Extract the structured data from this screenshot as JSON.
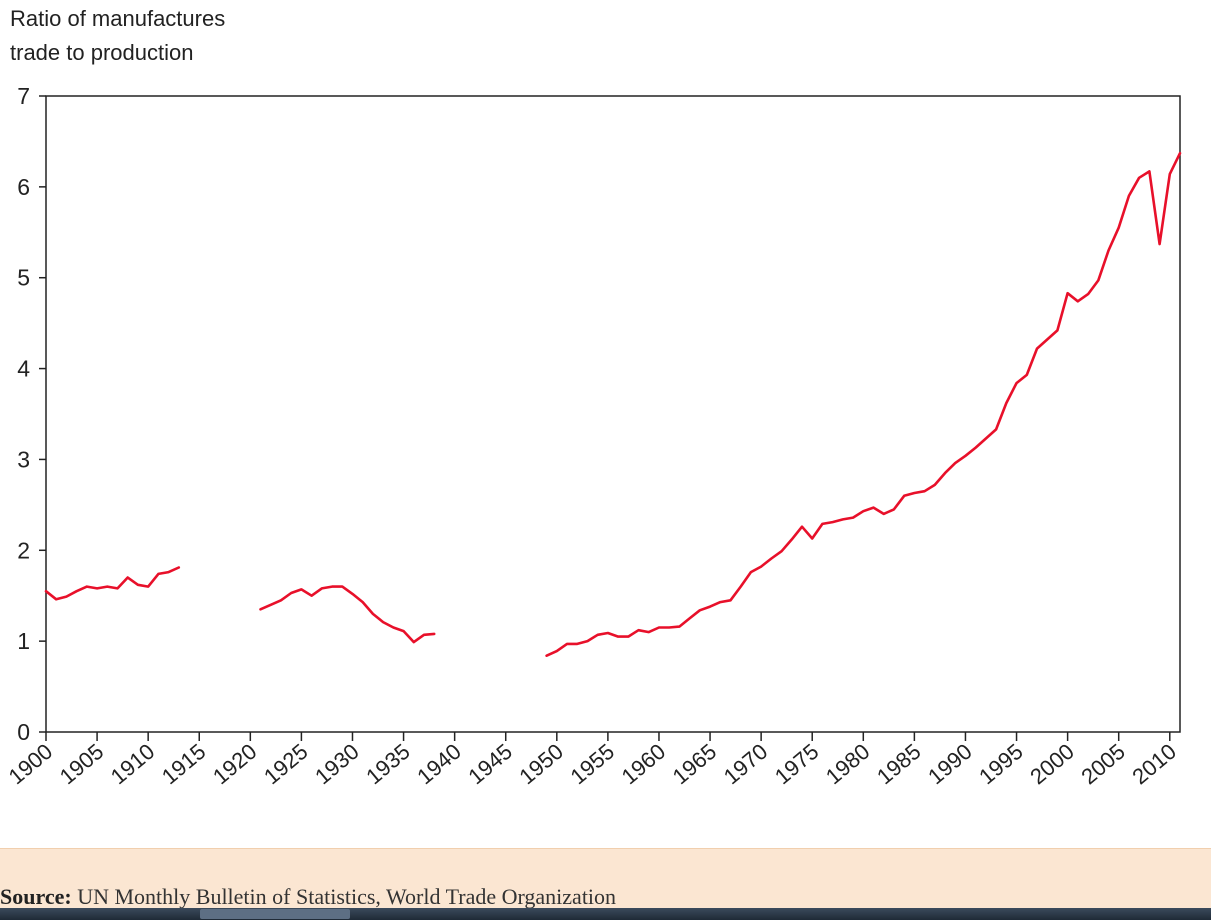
{
  "chart_data": {
    "type": "line",
    "ylabel_lines": [
      "Ratio of manufactures",
      "trade to production"
    ],
    "ylim": [
      0,
      7
    ],
    "yticks": [
      0,
      1,
      2,
      3,
      4,
      5,
      6,
      7
    ],
    "xlim": [
      1900,
      2011
    ],
    "xticks": [
      1900,
      1905,
      1910,
      1915,
      1920,
      1925,
      1930,
      1935,
      1940,
      1945,
      1950,
      1955,
      1960,
      1965,
      1970,
      1975,
      1980,
      1985,
      1990,
      1995,
      2000,
      2005,
      2010
    ],
    "grid": false,
    "series_color": "#e8102a",
    "segments": [
      {
        "x": [
          1900,
          1901,
          1902,
          1903,
          1904,
          1905,
          1906,
          1907,
          1908,
          1909,
          1910,
          1911,
          1912,
          1913
        ],
        "y": [
          1.55,
          1.46,
          1.49,
          1.55,
          1.6,
          1.58,
          1.6,
          1.58,
          1.7,
          1.62,
          1.6,
          1.74,
          1.76,
          1.81
        ]
      },
      {
        "x": [
          1921,
          1922,
          1923,
          1924,
          1925,
          1926,
          1927,
          1928,
          1929,
          1930,
          1931,
          1932,
          1933,
          1934,
          1935,
          1936,
          1937,
          1938
        ],
        "y": [
          1.35,
          1.4,
          1.45,
          1.53,
          1.57,
          1.5,
          1.58,
          1.6,
          1.6,
          1.52,
          1.43,
          1.3,
          1.21,
          1.15,
          1.11,
          0.99,
          1.07,
          1.08
        ]
      },
      {
        "x": [
          1949,
          1950,
          1951,
          1952,
          1953,
          1954,
          1955,
          1956,
          1957,
          1958,
          1959,
          1960,
          1961,
          1962,
          1963,
          1964,
          1965,
          1966,
          1967,
          1968,
          1969,
          1970,
          1971,
          1972,
          1973,
          1974,
          1975,
          1976,
          1977,
          1978,
          1979,
          1980,
          1981,
          1982,
          1983,
          1984,
          1985,
          1986,
          1987,
          1988,
          1989,
          1990,
          1991,
          1992,
          1993,
          1994,
          1995,
          1996,
          1997,
          1998,
          1999,
          2000,
          2001,
          2002,
          2003,
          2004,
          2005,
          2006,
          2007,
          2008,
          2009,
          2010,
          2011
        ],
        "y": [
          0.84,
          0.89,
          0.97,
          0.97,
          1.0,
          1.07,
          1.09,
          1.05,
          1.05,
          1.12,
          1.1,
          1.15,
          1.15,
          1.16,
          1.25,
          1.34,
          1.38,
          1.43,
          1.45,
          1.6,
          1.76,
          1.82,
          1.91,
          1.99,
          2.12,
          2.26,
          2.13,
          2.29,
          2.31,
          2.34,
          2.36,
          2.43,
          2.47,
          2.4,
          2.45,
          2.6,
          2.63,
          2.65,
          2.72,
          2.85,
          2.96,
          3.04,
          3.13,
          3.23,
          3.33,
          3.62,
          3.84,
          3.93,
          4.22,
          4.32,
          4.42,
          4.83,
          4.74,
          4.82,
          4.97,
          5.3,
          5.55,
          5.9,
          6.1,
          6.17,
          5.37,
          6.14,
          6.37
        ]
      }
    ]
  },
  "source": {
    "label": "Source:",
    "text": "UN Monthly Bulletin of Statistics, World Trade Organization"
  }
}
